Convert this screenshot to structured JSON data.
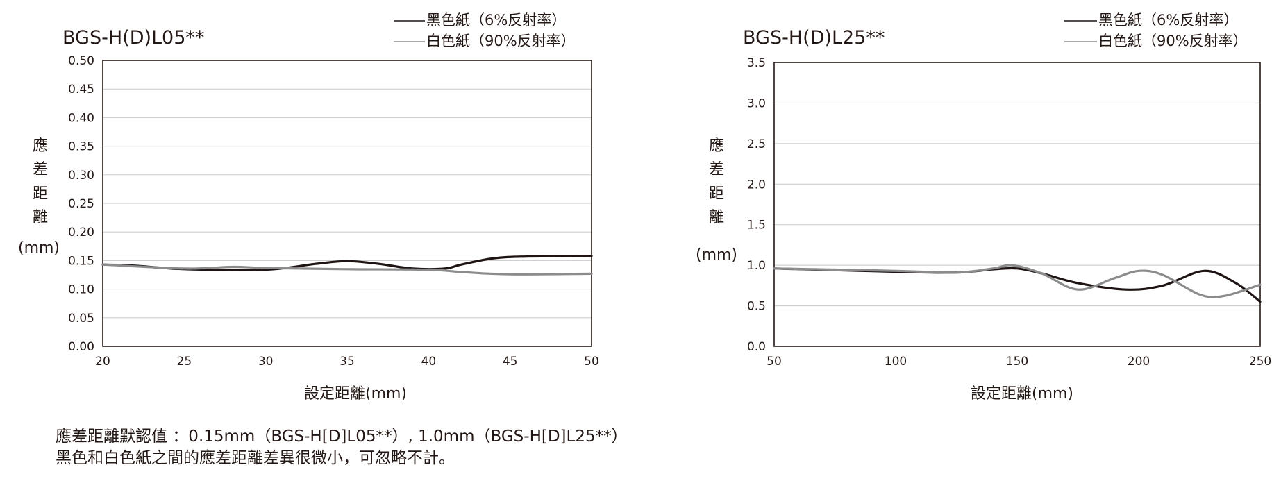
{
  "colors": {
    "black_paper": "#1e1414",
    "white_paper": "#8c8c8c",
    "grid": "#c8c8c8"
  },
  "chart_data": [
    {
      "type": "line",
      "title": "BGS-H(D)L05**",
      "xlabel": "設定距離(mm)",
      "ylabel_chars": [
        "應",
        "差",
        "距",
        "離"
      ],
      "ylabel_unit": "(mm)",
      "xlim": [
        20,
        50
      ],
      "ylim": [
        0,
        0.5
      ],
      "xticks": [
        "20",
        "25",
        "30",
        "35",
        "40",
        "45",
        "50"
      ],
      "yticks": [
        "0.00",
        "0.05",
        "0.10",
        "0.15",
        "0.20",
        "0.25",
        "0.30",
        "0.35",
        "0.40",
        "0.45",
        "0.50"
      ],
      "grid": true,
      "legend_position": "top-right",
      "series": [
        {
          "name": "黑色紙（6%反射率）",
          "color": "#1e1414",
          "x": [
            20,
            22,
            25,
            30,
            33,
            35,
            37,
            39,
            41,
            42,
            44,
            46,
            50
          ],
          "y": [
            0.143,
            0.141,
            0.135,
            0.134,
            0.144,
            0.149,
            0.144,
            0.136,
            0.136,
            0.143,
            0.154,
            0.157,
            0.158
          ]
        },
        {
          "name": "白色紙（90%反射率）",
          "color": "#8c8c8c",
          "x": [
            20,
            25,
            28,
            30,
            35,
            40,
            42,
            45,
            50
          ],
          "y": [
            0.143,
            0.136,
            0.139,
            0.137,
            0.135,
            0.134,
            0.13,
            0.126,
            0.127
          ]
        }
      ]
    },
    {
      "type": "line",
      "title": "BGS-H(D)L25**",
      "xlabel": "設定距離(mm)",
      "ylabel_chars": [
        "應",
        "差",
        "距",
        "離"
      ],
      "ylabel_unit": "(mm)",
      "xlim": [
        50,
        250
      ],
      "ylim": [
        0,
        3.5
      ],
      "xticks": [
        "50",
        "100",
        "150",
        "200",
        "250"
      ],
      "yticks": [
        "0.0",
        "0.5",
        "1.0",
        "1.5",
        "2.0",
        "2.5",
        "3.0",
        "3.5"
      ],
      "grid": true,
      "legend_position": "top-right",
      "series": [
        {
          "name": "黑色紙（6%反射率）",
          "color": "#1e1414",
          "x": [
            50,
            100,
            125,
            140,
            150,
            160,
            175,
            195,
            210,
            227,
            240,
            250
          ],
          "y": [
            0.96,
            0.92,
            0.91,
            0.95,
            0.96,
            0.9,
            0.78,
            0.7,
            0.75,
            0.93,
            0.78,
            0.55
          ]
        },
        {
          "name": "白色紙（90%反射率）",
          "color": "#8c8c8c",
          "x": [
            50,
            100,
            125,
            140,
            148,
            160,
            175,
            190,
            200,
            210,
            225,
            235,
            250
          ],
          "y": [
            0.96,
            0.93,
            0.91,
            0.96,
            1.0,
            0.9,
            0.7,
            0.84,
            0.93,
            0.88,
            0.64,
            0.62,
            0.76
          ]
        }
      ]
    }
  ],
  "notes": [
    "應差距離默認值 ：0.15mm（BGS-H[D]L05**）, 1.0mm（BGS-H[D]L25**）",
    "黑色和白色紙之間的應差距離差異很微小，可忽略不計。"
  ]
}
